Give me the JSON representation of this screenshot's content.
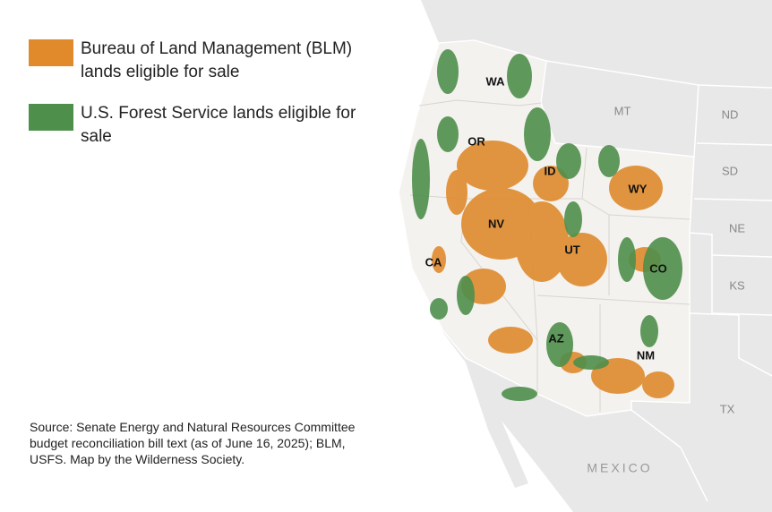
{
  "legend": [
    {
      "label": "Bureau of Land Management (BLM) lands eligible for sale",
      "color": "#e08a2c"
    },
    {
      "label": "U.S. Forest Service lands eligible for sale",
      "color": "#4f8f4c"
    }
  ],
  "states": {
    "western": [
      "WA",
      "OR",
      "ID",
      "MT",
      "WY",
      "NV",
      "UT",
      "CO",
      "CA",
      "AZ",
      "NM"
    ],
    "other": [
      "ND",
      "SD",
      "NE",
      "KS",
      "TX"
    ]
  },
  "country_label": "MEXICO",
  "source": "Source: Senate Energy and Natural Resources Committee budget reconciliation bill text (as of June 16, 2025); BLM, USFS. Map by the Wilderness Society."
}
